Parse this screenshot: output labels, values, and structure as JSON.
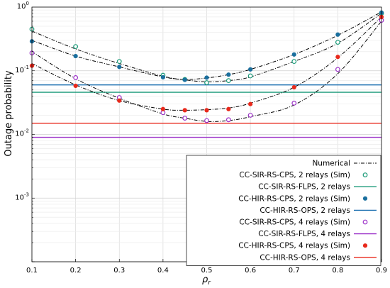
{
  "chart_data": {
    "type": "line",
    "xlabel": "ρr",
    "ylabel": "Outage probability",
    "xlim": [
      0.1,
      0.9
    ],
    "ylim": [
      0.0001,
      1
    ],
    "yscale": "log",
    "grid": true,
    "legend_position": "bottom-right",
    "x_ticks": [
      "0.1",
      "0.2",
      "0.3",
      "0.4",
      "0.5",
      "0.6",
      "0.7",
      "0.8",
      "0.9"
    ],
    "y_ticks": [
      {
        "base": "10",
        "exp": "0",
        "value": 1
      },
      {
        "base": "10",
        "exp": "-1",
        "value": 0.1
      },
      {
        "base": "10",
        "exp": "-2",
        "value": 0.01
      },
      {
        "base": "10",
        "exp": "-3",
        "value": 0.001
      }
    ],
    "numerical": {
      "name": "Numerical",
      "color": "#000000",
      "curves": [
        {
          "x": [
            0.1,
            0.2,
            0.3,
            0.4,
            0.45,
            0.5,
            0.55,
            0.6,
            0.7,
            0.8,
            0.9
          ],
          "y": [
            0.42,
            0.22,
            0.13,
            0.082,
            0.072,
            0.067,
            0.07,
            0.08,
            0.14,
            0.27,
            0.8
          ]
        },
        {
          "x": [
            0.1,
            0.2,
            0.3,
            0.4,
            0.45,
            0.5,
            0.55,
            0.6,
            0.7,
            0.8,
            0.9
          ],
          "y": [
            0.3,
            0.17,
            0.115,
            0.08,
            0.073,
            0.077,
            0.087,
            0.105,
            0.18,
            0.36,
            0.84
          ]
        },
        {
          "x": [
            0.1,
            0.2,
            0.3,
            0.4,
            0.45,
            0.5,
            0.55,
            0.6,
            0.7,
            0.8,
            0.9
          ],
          "y": [
            0.13,
            0.06,
            0.034,
            0.025,
            0.024,
            0.0245,
            0.026,
            0.031,
            0.055,
            0.16,
            0.7
          ]
        },
        {
          "x": [
            0.1,
            0.2,
            0.3,
            0.4,
            0.45,
            0.5,
            0.55,
            0.6,
            0.7,
            0.8,
            0.9
          ],
          "y": [
            0.2,
            0.075,
            0.037,
            0.021,
            0.018,
            0.016,
            0.0165,
            0.019,
            0.029,
            0.09,
            0.6
          ]
        }
      ]
    },
    "series": [
      {
        "name": "CC-SIR-RS-CPS, 2 relays (Sim)",
        "kind": "marker-open",
        "color": "#1a9a78",
        "x": [
          0.1,
          0.2,
          0.3,
          0.4,
          0.45,
          0.5,
          0.55,
          0.6,
          0.7,
          0.8,
          0.9
        ],
        "y": [
          0.45,
          0.24,
          0.14,
          0.085,
          0.073,
          0.065,
          0.07,
          0.083,
          0.14,
          0.28,
          0.8
        ]
      },
      {
        "name": "CC-SIR-RS-FLPS, 2 relays",
        "kind": "hline",
        "color": "#1a9a78",
        "y": 0.046
      },
      {
        "name": "CC-HIR-RS-CPS, 2 relays (Sim)",
        "kind": "marker-filled",
        "color": "#1a6f9e",
        "x": [
          0.1,
          0.2,
          0.3,
          0.4,
          0.45,
          0.5,
          0.55,
          0.6,
          0.7,
          0.8,
          0.9
        ],
        "y": [
          0.29,
          0.17,
          0.115,
          0.079,
          0.072,
          0.078,
          0.087,
          0.105,
          0.18,
          0.37,
          0.82
        ]
      },
      {
        "name": "CC-HIR-RS-OPS, 2 relays",
        "kind": "hline",
        "color": "#1a6fb0",
        "y": 0.06
      },
      {
        "name": "CC-SIR-RS-CPS, 4 relays (Sim)",
        "kind": "marker-open",
        "color": "#9b30c8",
        "x": [
          0.1,
          0.2,
          0.3,
          0.4,
          0.45,
          0.5,
          0.55,
          0.6,
          0.7,
          0.8,
          0.9
        ],
        "y": [
          0.19,
          0.078,
          0.038,
          0.022,
          0.018,
          0.0165,
          0.017,
          0.02,
          0.031,
          0.105,
          0.62
        ]
      },
      {
        "name": "CC-SIR-RS-FLPS, 4 relays",
        "kind": "hline",
        "color": "#9b30c8",
        "y": 0.009
      },
      {
        "name": "CC-HIR-RS-CPS, 4 relays (Sim)",
        "kind": "marker-filled",
        "color": "#e8291c",
        "x": [
          0.1,
          0.2,
          0.3,
          0.4,
          0.45,
          0.5,
          0.55,
          0.6,
          0.7,
          0.8,
          0.9
        ],
        "y": [
          0.12,
          0.058,
          0.034,
          0.025,
          0.024,
          0.024,
          0.025,
          0.03,
          0.055,
          0.165,
          0.7
        ]
      },
      {
        "name": "CC-HIR-RS-OPS, 4 relays",
        "kind": "hline",
        "color": "#e8291c",
        "y": 0.015
      }
    ]
  }
}
